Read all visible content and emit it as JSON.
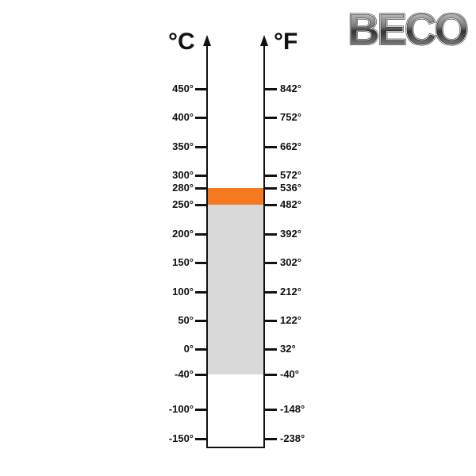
{
  "units": {
    "celsius": "°C",
    "fahrenheit": "°F"
  },
  "logo": {
    "text": "BECO"
  },
  "ticks": [
    {
      "c": "450°",
      "f": "842°"
    },
    {
      "c": "400°",
      "f": "752°"
    },
    {
      "c": "350°",
      "f": "662°"
    },
    {
      "c": "300°",
      "f": "572°"
    },
    {
      "c": "280°",
      "f": "536°"
    },
    {
      "c": "250°",
      "f": "482°"
    },
    {
      "c": "200°",
      "f": "392°"
    },
    {
      "c": "150°",
      "f": "302°"
    },
    {
      "c": "100°",
      "f": "212°"
    },
    {
      "c": "50°",
      "f": "122°"
    },
    {
      "c": "0°",
      "f": "32°"
    },
    {
      "c": "-40°",
      "f": "-40°"
    },
    {
      "c": "-100°",
      "f": "-148°"
    },
    {
      "c": "-150°",
      "f": "-238°"
    }
  ],
  "ranges": [
    {
      "from_c": 250,
      "to_c": 280,
      "color": "#f47920"
    },
    {
      "from_c": -40,
      "to_c": 250,
      "color": "#d9d9d9"
    }
  ]
}
